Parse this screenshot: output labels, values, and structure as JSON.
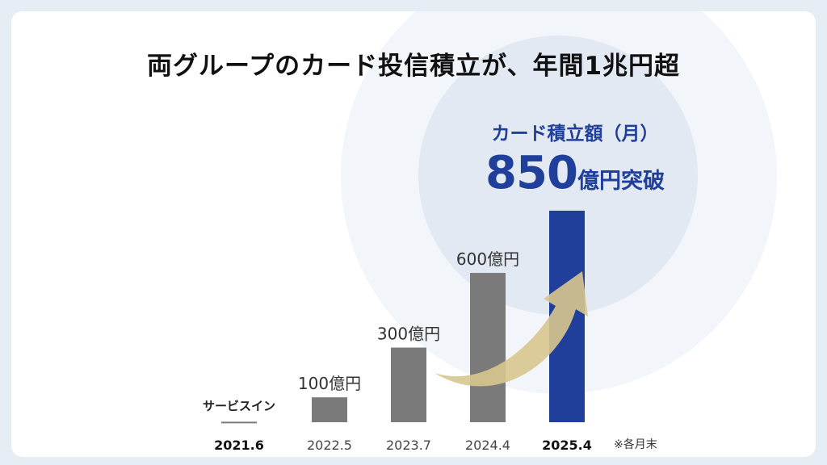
{
  "title": "両グループのカード投信積立が、年間1兆円超",
  "callout": {
    "label": "カード積立額（月）",
    "value_number": "850",
    "value_unit": "億円突破"
  },
  "note": "※各月末",
  "colors": {
    "bar": "#7a7a7a",
    "highlight_bar": "#1f3f9a",
    "arrow": "#d8c68e"
  },
  "chart_data": {
    "type": "bar",
    "categories": [
      "2021.6",
      "2022.5",
      "2023.7",
      "2024.4",
      "2025.4"
    ],
    "values": [
      2,
      100,
      300,
      600,
      850
    ],
    "data_labels": [
      "サービスイン",
      "100億円",
      "300億円",
      "600億円",
      ""
    ],
    "bold_categories": [
      0,
      4
    ],
    "highlight_index": 4,
    "ylim": [
      0,
      850
    ],
    "grid": false
  }
}
